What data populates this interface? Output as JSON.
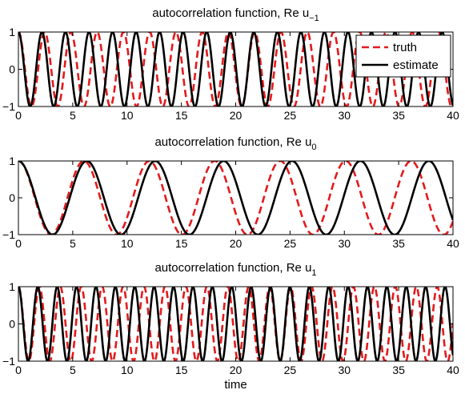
{
  "chart_data": [
    {
      "type": "line",
      "title": "autocorrelation function, Re u",
      "title_subscript": "−1",
      "xlim": [
        0,
        40
      ],
      "ylim": [
        -1,
        1
      ],
      "xticks": [
        0,
        5,
        10,
        15,
        20,
        25,
        30,
        35,
        40
      ],
      "yticks": [
        -1,
        0,
        1
      ],
      "xlabel": "",
      "legend": {
        "position": "top-right",
        "entries": [
          {
            "label": "truth",
            "style": "dashed",
            "color": "#e31a1c"
          },
          {
            "label": "estimate",
            "style": "solid",
            "color": "#000000"
          }
        ]
      },
      "series": [
        {
          "name": "truth",
          "function": "cos",
          "angular_frequency": 2.6,
          "x_start": 0,
          "x_end": 40,
          "color": "#e31a1c",
          "dashed": true
        },
        {
          "name": "estimate",
          "function": "cos",
          "angular_frequency": 2.9,
          "x_start": 0,
          "x_end": 40,
          "color": "#000000",
          "dashed": false
        }
      ]
    },
    {
      "type": "line",
      "title": "autocorrelation function, Re u",
      "title_subscript": "0",
      "xlim": [
        0,
        40
      ],
      "ylim": [
        -1,
        1
      ],
      "xticks": [
        0,
        5,
        10,
        15,
        20,
        25,
        30,
        35,
        40
      ],
      "yticks": [
        -1,
        0,
        1
      ],
      "xlabel": "",
      "series": [
        {
          "name": "truth",
          "function": "cos",
          "angular_frequency": 1.043,
          "x_start": 0,
          "x_end": 40,
          "color": "#e31a1c",
          "dashed": true
        },
        {
          "name": "estimate",
          "function": "cos",
          "angular_frequency": 0.998,
          "x_start": 0,
          "x_end": 40,
          "color": "#000000",
          "dashed": false
        }
      ]
    },
    {
      "type": "line",
      "title": "autocorrelation function, Re u",
      "title_subscript": "1",
      "xlim": [
        0,
        40
      ],
      "ylim": [
        -1,
        1
      ],
      "xticks": [
        0,
        5,
        10,
        15,
        20,
        25,
        30,
        35,
        40
      ],
      "yticks": [
        -1,
        0,
        1
      ],
      "xlabel": "time",
      "series": [
        {
          "name": "truth",
          "function": "cos",
          "angular_frequency": 3.26,
          "x_start": 0,
          "x_end": 40,
          "color": "#e31a1c",
          "dashed": true
        },
        {
          "name": "estimate",
          "function": "cos",
          "angular_frequency": 3.52,
          "x_start": 0,
          "x_end": 40,
          "color": "#000000",
          "dashed": false
        }
      ]
    }
  ]
}
